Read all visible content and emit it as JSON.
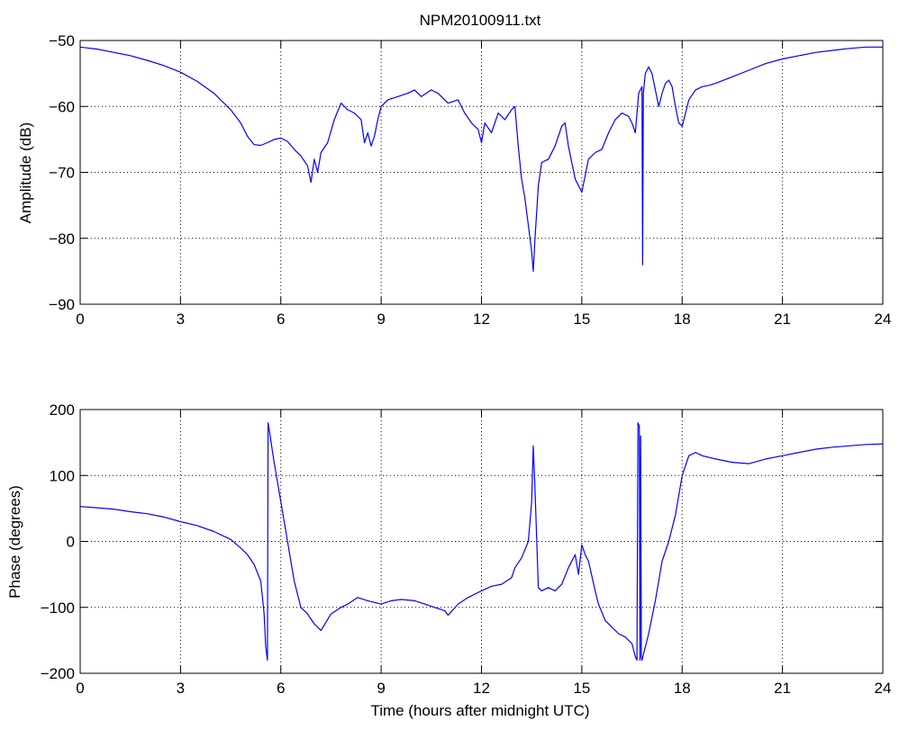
{
  "figure_title": "NPM20100911.txt",
  "colors": {
    "series": "#0000ff",
    "axes": "#000000",
    "background": "#ffffff"
  },
  "chart_data": [
    {
      "type": "line",
      "title": "NPM20100911.txt",
      "xlabel": "",
      "ylabel": "Amplitude (dB)",
      "xlim": [
        0,
        24
      ],
      "ylim": [
        -90,
        -50
      ],
      "xticks": [
        0,
        3,
        6,
        9,
        12,
        15,
        18,
        21,
        24
      ],
      "yticks": [
        -90,
        -80,
        -70,
        -60,
        -50
      ],
      "grid": true,
      "series": [
        {
          "color": "#0000ff",
          "x": [
            0,
            0.5,
            1,
            1.5,
            2,
            2.5,
            3,
            3.5,
            4,
            4.5,
            4.8,
            5.0,
            5.2,
            5.4,
            5.6,
            5.8,
            6.0,
            6.2,
            6.4,
            6.6,
            6.8,
            6.9,
            7.0,
            7.1,
            7.2,
            7.4,
            7.6,
            7.8,
            8.0,
            8.2,
            8.4,
            8.5,
            8.6,
            8.7,
            8.8,
            8.9,
            9.0,
            9.2,
            9.5,
            9.8,
            10.0,
            10.2,
            10.5,
            10.7,
            11.0,
            11.3,
            11.5,
            11.7,
            11.9,
            12.0,
            12.1,
            12.3,
            12.5,
            12.7,
            12.9,
            13.0,
            13.1,
            13.2,
            13.3,
            13.4,
            13.5,
            13.55,
            13.6,
            13.65,
            13.7,
            13.8,
            14.0,
            14.2,
            14.4,
            14.5,
            14.6,
            14.8,
            15.0,
            15.2,
            15.4,
            15.6,
            15.8,
            16.0,
            16.2,
            16.4,
            16.5,
            16.6,
            16.7,
            16.8,
            16.82,
            16.84,
            16.9,
            17.0,
            17.1,
            17.2,
            17.3,
            17.4,
            17.5,
            17.6,
            17.7,
            17.8,
            17.9,
            18.0,
            18.1,
            18.2,
            18.4,
            18.6,
            18.8,
            19.0,
            19.5,
            20.0,
            20.5,
            21.0,
            21.5,
            22.0,
            22.5,
            23.0,
            23.5,
            24.0
          ],
          "y": [
            -51,
            -51.3,
            -51.8,
            -52.3,
            -53,
            -53.8,
            -54.8,
            -56.2,
            -58,
            -60.5,
            -62.5,
            -64.5,
            -65.8,
            -65.9,
            -65.5,
            -65,
            -64.8,
            -65.3,
            -66.5,
            -67.5,
            -69,
            -71.5,
            -68,
            -70,
            -67,
            -65.5,
            -62,
            -59.5,
            -60.5,
            -61,
            -62,
            -65.5,
            -64,
            -66,
            -64.5,
            -62,
            -60,
            -59,
            -58.5,
            -58,
            -57.5,
            -58.5,
            -57.5,
            -58,
            -59.5,
            -59,
            -61,
            -62.5,
            -63.5,
            -65.5,
            -62.5,
            -64,
            -61,
            -62,
            -60.5,
            -60,
            -66,
            -71,
            -74,
            -78,
            -82,
            -85,
            -80,
            -76,
            -72,
            -68.5,
            -68,
            -66,
            -63,
            -62.5,
            -66,
            -71,
            -73,
            -68,
            -67,
            -66.5,
            -64,
            -62,
            -61,
            -61.5,
            -62.5,
            -64,
            -58,
            -57,
            -84,
            -58,
            -55,
            -54,
            -55,
            -57.5,
            -60,
            -58,
            -56.5,
            -56,
            -57,
            -60,
            -62.5,
            -63,
            -61,
            -59,
            -57.5,
            -57,
            -56.8,
            -56.5,
            -55.5,
            -54.5,
            -53.5,
            -52.8,
            -52.3,
            -51.8,
            -51.5,
            -51.2,
            -51,
            -51
          ]
        }
      ]
    },
    {
      "type": "line",
      "title": "",
      "xlabel": "Time (hours after midnight UTC)",
      "ylabel": "Phase (degrees)",
      "xlim": [
        0,
        24
      ],
      "ylim": [
        -200,
        200
      ],
      "xticks": [
        0,
        3,
        6,
        9,
        12,
        15,
        18,
        21,
        24
      ],
      "yticks": [
        -200,
        -100,
        0,
        100,
        200
      ],
      "grid": true,
      "series": [
        {
          "color": "#0000ff",
          "x": [
            0,
            0.5,
            1,
            1.5,
            2,
            2.5,
            3,
            3.5,
            4,
            4.5,
            4.8,
            5.0,
            5.2,
            5.4,
            5.5,
            5.55,
            5.6,
            5.62,
            5.65,
            5.8,
            6.0,
            6.2,
            6.4,
            6.6,
            6.8,
            7.0,
            7.2,
            7.5,
            7.8,
            8.0,
            8.3,
            8.6,
            9.0,
            9.3,
            9.6,
            10.0,
            10.3,
            10.6,
            10.9,
            11.0,
            11.3,
            11.6,
            12.0,
            12.3,
            12.6,
            12.9,
            13.0,
            13.2,
            13.4,
            13.5,
            13.55,
            13.6,
            13.7,
            13.8,
            14.0,
            14.2,
            14.4,
            14.6,
            14.8,
            14.9,
            15.0,
            15.1,
            15.2,
            15.4,
            15.5,
            15.7,
            15.9,
            16.1,
            16.3,
            16.5,
            16.6,
            16.65,
            16.68,
            16.72,
            16.74,
            16.76,
            16.78,
            16.8,
            17.0,
            17.2,
            17.4,
            17.6,
            17.8,
            18.0,
            18.2,
            18.4,
            18.6,
            19.0,
            19.5,
            20.0,
            20.5,
            21.0,
            21.5,
            22.0,
            22.5,
            23.0,
            23.5,
            24.0
          ],
          "y": [
            53,
            51,
            49,
            45,
            42,
            37,
            30,
            24,
            15,
            3,
            -10,
            -20,
            -35,
            -60,
            -110,
            -160,
            -180,
            180,
            170,
            120,
            60,
            0,
            -60,
            -100,
            -110,
            -125,
            -135,
            -110,
            -100,
            -95,
            -85,
            -90,
            -95,
            -90,
            -88,
            -90,
            -95,
            -100,
            -105,
            -112,
            -95,
            -85,
            -75,
            -68,
            -65,
            -55,
            -40,
            -25,
            0,
            60,
            145,
            80,
            -70,
            -75,
            -70,
            -75,
            -65,
            -40,
            -20,
            -50,
            -5,
            -20,
            -30,
            -75,
            -95,
            -120,
            -130,
            -140,
            -145,
            -155,
            -175,
            -180,
            180,
            175,
            -180,
            160,
            -175,
            -180,
            -140,
            -90,
            -30,
            0,
            40,
            100,
            130,
            135,
            130,
            125,
            120,
            118,
            125,
            130,
            135,
            140,
            143,
            145,
            147,
            148
          ]
        }
      ]
    }
  ]
}
